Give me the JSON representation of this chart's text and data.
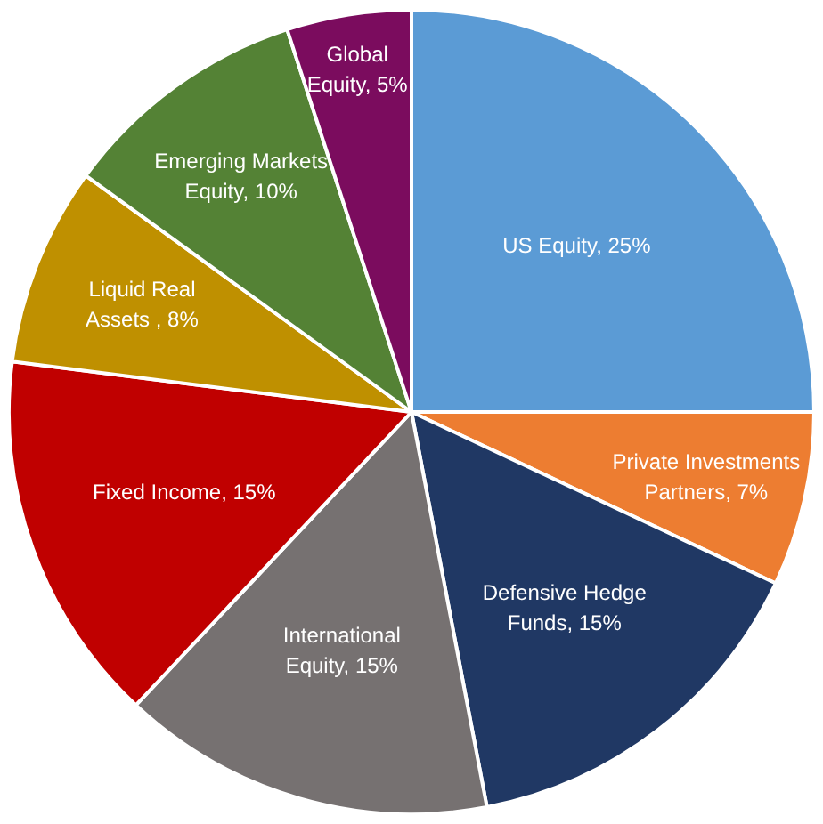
{
  "chart_data": {
    "type": "pie",
    "categories": [
      "US Equity",
      "Private Investments Partners",
      "Defensive Hedge Funds",
      "International Equity",
      "Fixed Income",
      "Liquid Real Assets ",
      "Emerging Markets Equity",
      "Global Equity"
    ],
    "values": [
      25,
      7,
      15,
      15,
      15,
      8,
      10,
      5
    ],
    "colors": [
      "#5b9bd5",
      "#ed7d31",
      "#203864",
      "#767171",
      "#c00000",
      "#bf9000",
      "#548235",
      "#7b0c5e"
    ],
    "value_labels": [
      "25%",
      "7%",
      "15%",
      "15%",
      "15%",
      "8%",
      "10%",
      "5%"
    ],
    "legend": false
  }
}
